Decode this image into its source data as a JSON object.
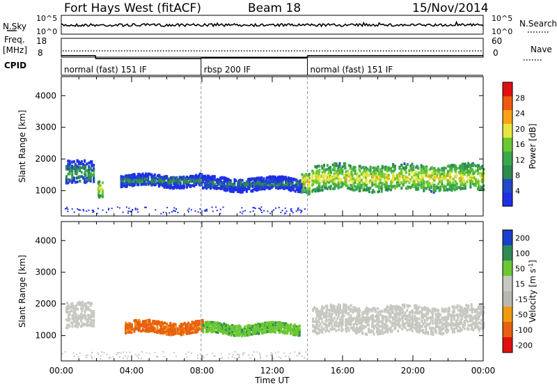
{
  "header": {
    "station": "Fort Hays West (fitACF)",
    "beam": "Beam 18",
    "date": "15/Nov/2014"
  },
  "strip_labels": {
    "nsky": "N.Sky",
    "nsky_ticks": [
      "10^5",
      "10^0"
    ],
    "nsearch": "N.Search",
    "freq": "Freq.",
    "freq_unit": "[MHz]",
    "freq_ticks": [
      "18",
      "8"
    ],
    "nave": "Nave",
    "nave_ticks": [
      "60",
      "0"
    ],
    "cpid": "CPID"
  },
  "cpid_segments": [
    {
      "start": 0,
      "end": 7.95,
      "label": "normal (fast) 151 IF"
    },
    {
      "start": 7.95,
      "end": 14.0,
      "label": "rbsp 200 IF"
    },
    {
      "start": 14.0,
      "end": 24.0,
      "label": "normal (fast) 151 IF"
    }
  ],
  "freq_series": [
    {
      "start": 0,
      "end": 1.95,
      "mhz": 11.8
    },
    {
      "start": 1.95,
      "end": 7.95,
      "mhz": 10.2
    },
    {
      "start": 7.95,
      "end": 14.0,
      "mhz": 10.5
    },
    {
      "start": 14.0,
      "end": 24.0,
      "mhz": 11.8
    }
  ],
  "colors": {
    "power": [
      "#1f2fe6",
      "#2048c8",
      "#2f8a4e",
      "#3ba84c",
      "#6cc832",
      "#e8e640",
      "#f8a214",
      "#f05a0e",
      "#e0100e"
    ],
    "velocity": [
      "#1b3fcb",
      "#2f8a56",
      "#6cc832",
      "#c8c8c2",
      "#b8b8b0",
      "#f09a12",
      "#e86010",
      "#e01010"
    ]
  },
  "chart_data": [
    {
      "type": "heatmap",
      "panel": "power",
      "ylabel": "Slant Range [km]",
      "yticks": [
        "1000",
        "2000",
        "3000",
        "4000"
      ],
      "ylim": [
        200,
        4600
      ],
      "xlim": [
        0,
        24
      ],
      "colorbar_label": "Power [dB]",
      "colorbar_ticks": [
        "4",
        "8",
        "12",
        "16",
        "20",
        "24",
        "28"
      ],
      "colorbar_range": [
        0,
        32
      ],
      "features": [
        {
          "t_start": 0.2,
          "t_end": 1.8,
          "range_center": 1600,
          "range_half_width": 350,
          "level": 12
        },
        {
          "t_start": 2.0,
          "t_end": 2.3,
          "range_center": 1100,
          "range_half_width": 250,
          "level": 20
        },
        {
          "t_start": 3.3,
          "t_end": 8.0,
          "range_center": 1350,
          "range_half_width": 180,
          "level": 10
        },
        {
          "t_start": 8.0,
          "t_end": 13.8,
          "range_center": 1250,
          "range_half_width": 200,
          "level": 9
        },
        {
          "t_start": 13.6,
          "t_end": 14.1,
          "range_center": 1300,
          "range_half_width": 350,
          "level": 22
        },
        {
          "t_start": 14.2,
          "t_end": 24.0,
          "range_center": 1450,
          "range_half_width": 400,
          "level": 20
        }
      ]
    },
    {
      "type": "heatmap",
      "panel": "velocity",
      "ylabel": "Slant Range [km]",
      "yticks": [
        "1000",
        "2000",
        "3000",
        "4000"
      ],
      "ylim": [
        200,
        4600
      ],
      "xlim": [
        0,
        24
      ],
      "xticks": [
        "00:00",
        "04:00",
        "08:00",
        "12:00",
        "16:00",
        "20:00",
        "00:00"
      ],
      "xlabel": "Time UT",
      "colorbar_label": "Velocity [m s^-1]",
      "colorbar_ticks": [
        "200",
        "100",
        "50",
        "15",
        "-15",
        "-50",
        "-100",
        "-200"
      ],
      "features": [
        {
          "t_start": 0.2,
          "t_end": 1.8,
          "range_center": 1650,
          "range_half_width": 400,
          "velocity": 0
        },
        {
          "t_start": 3.6,
          "t_end": 8.0,
          "range_center": 1300,
          "range_half_width": 180,
          "velocity": -60
        },
        {
          "t_start": 8.0,
          "t_end": 13.5,
          "range_center": 1250,
          "range_half_width": 160,
          "velocity": 40
        },
        {
          "t_start": 14.2,
          "t_end": 24.0,
          "range_center": 1550,
          "range_half_width": 420,
          "velocity": 0
        }
      ]
    }
  ]
}
